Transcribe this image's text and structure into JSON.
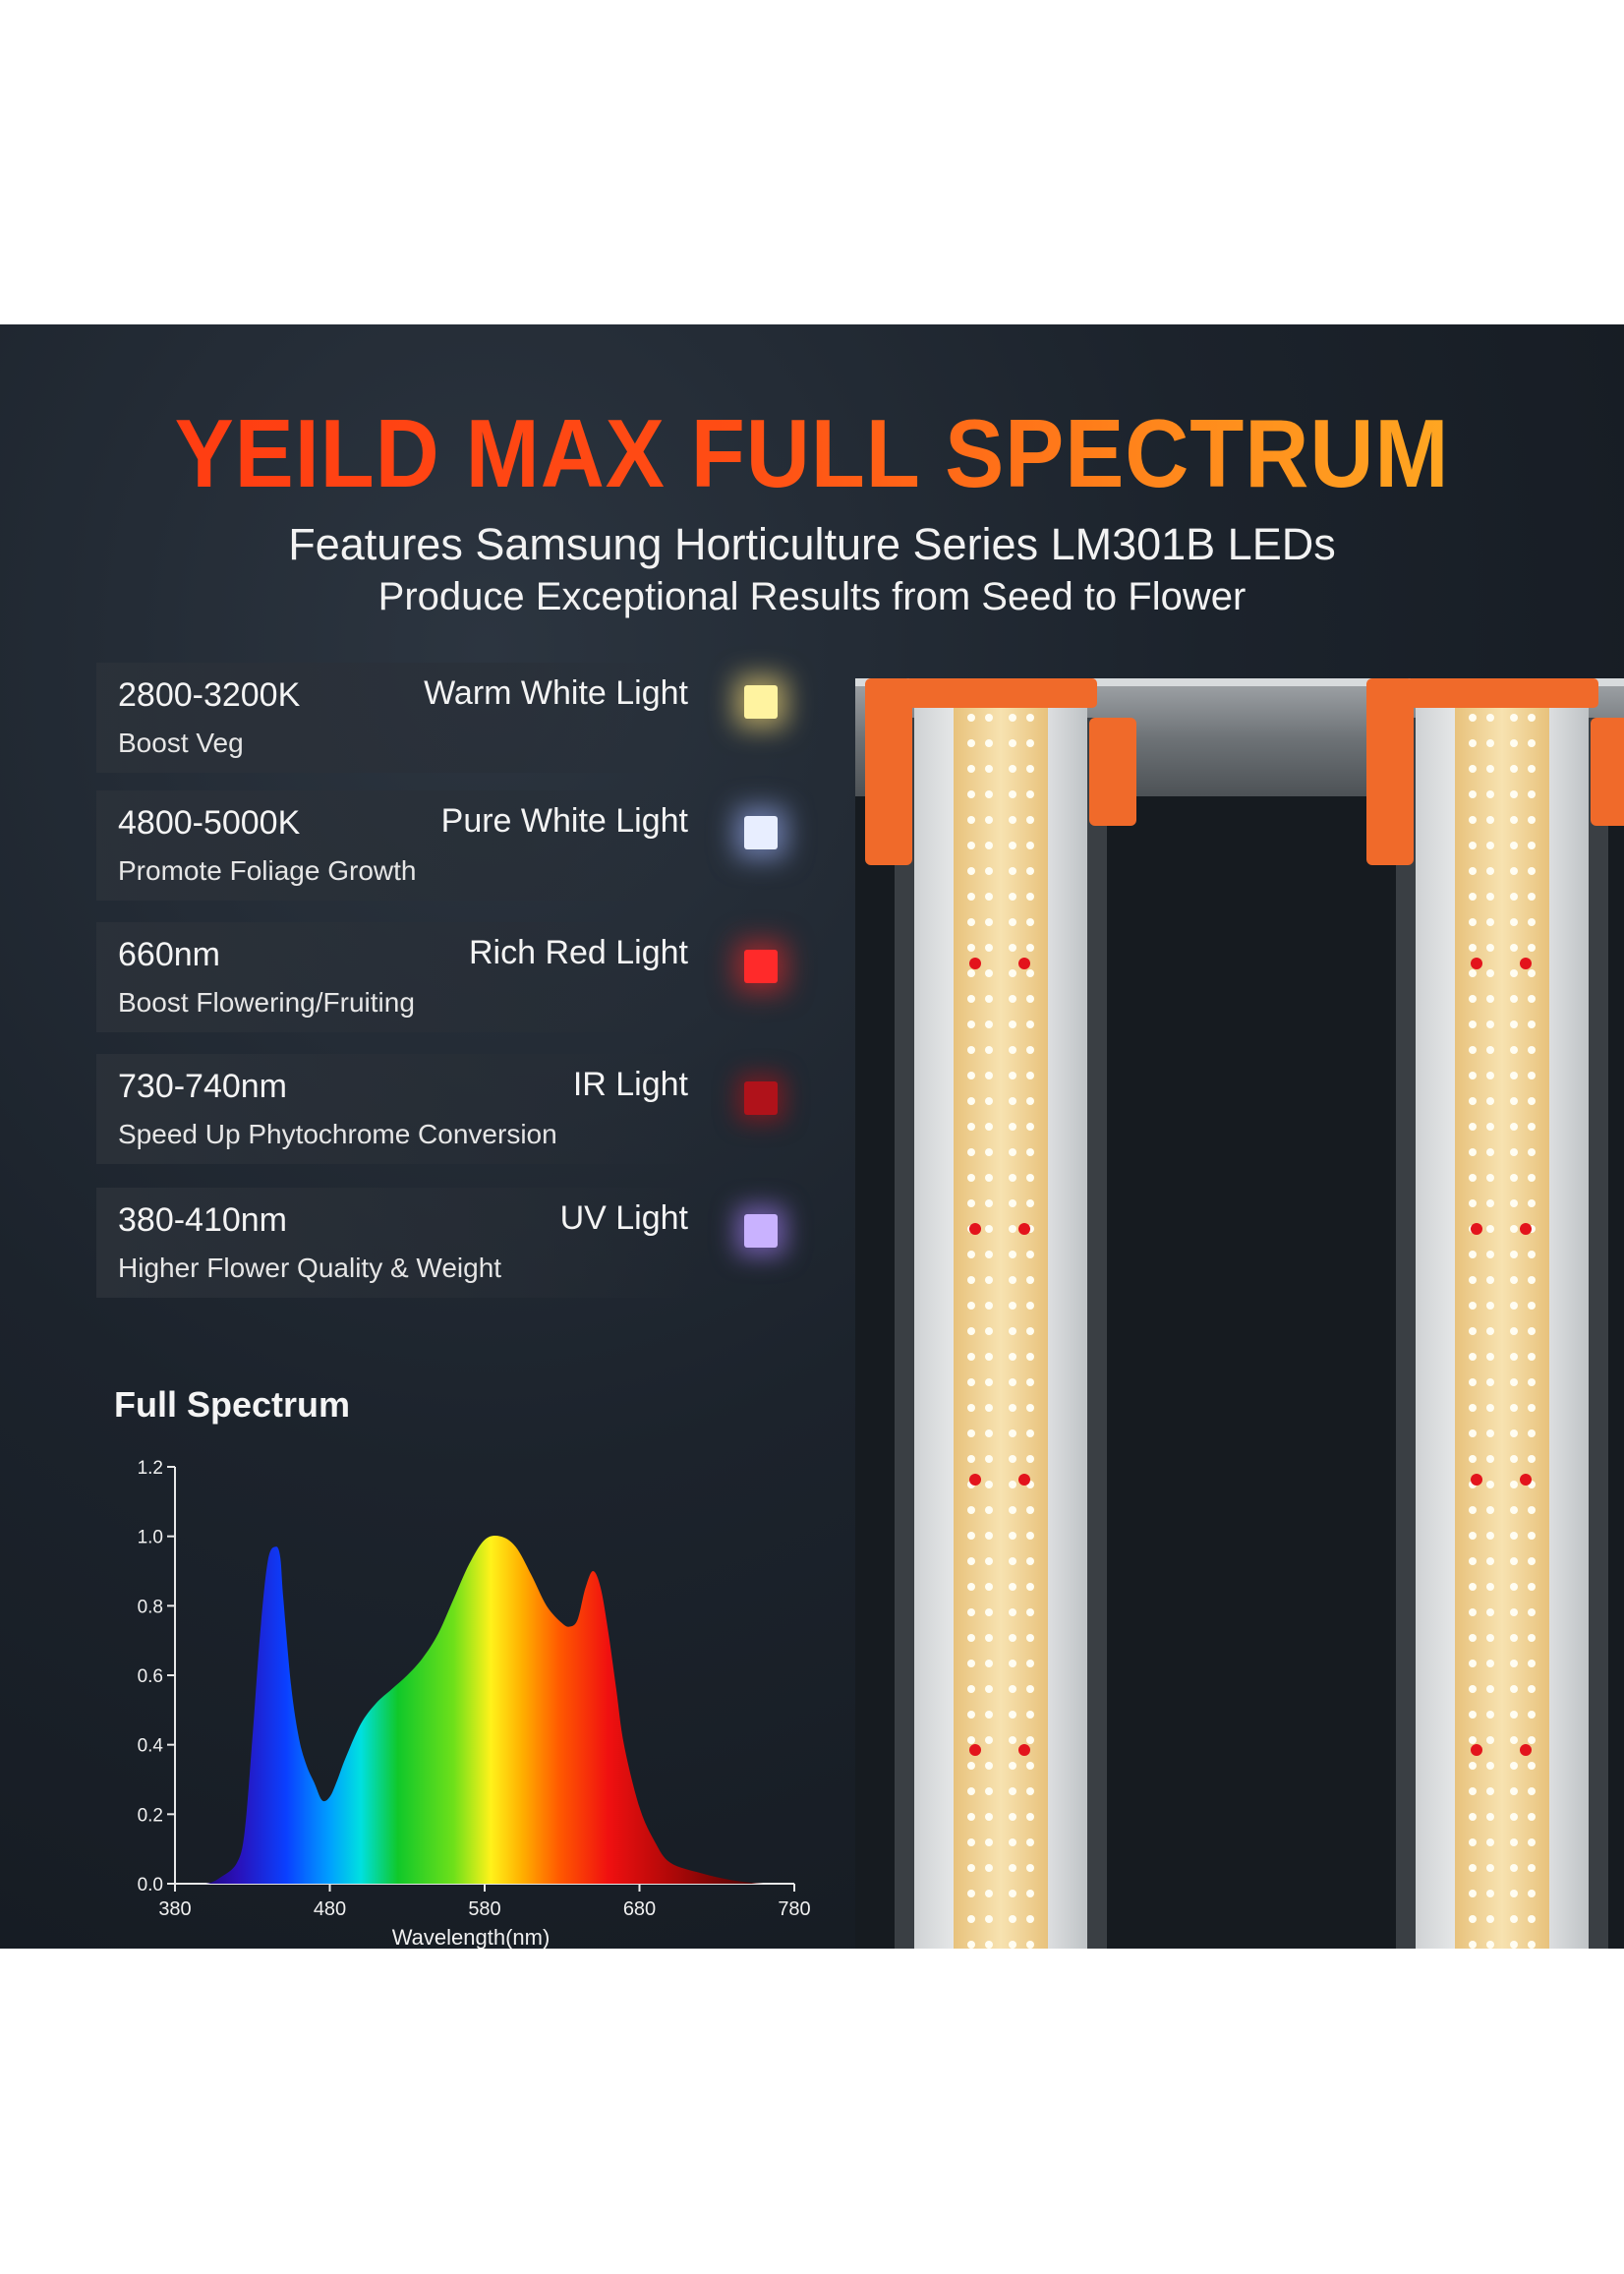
{
  "title": "YEILD MAX FULL SPECTRUM",
  "subtitle_line1": "Features Samsung Horticulture Series LM301B LEDs",
  "subtitle_line2": "Produce Exceptional Results from Seed to Flower",
  "features": [
    {
      "range": "2800-3200K",
      "name": "Warm White Light",
      "desc": "Boost Veg",
      "color": "#fff3a0"
    },
    {
      "range": "4800-5000K",
      "name": "Pure White Light",
      "desc": "Promote Foliage Growth",
      "color": "#e8eeff"
    },
    {
      "range": "660nm",
      "name": "Rich Red Light",
      "desc": "Boost Flowering/Fruiting",
      "color": "#ff2a2a"
    },
    {
      "range": "730-740nm",
      "name": "IR Light",
      "desc": "Speed Up Phytochrome Conversion",
      "color": "#b0121a"
    },
    {
      "range": "380-410nm",
      "name": "UV Light",
      "desc": "Higher Flower Quality & Weight",
      "color": "#c9b2ff"
    }
  ],
  "chart_title": "Full Spectrum",
  "chart_data": {
    "type": "area",
    "xlabel": "Wavelength(nm)",
    "ylabel": "",
    "xlim": [
      380,
      780
    ],
    "ylim": [
      0,
      1.2
    ],
    "x_ticks": [
      "380",
      "480",
      "580",
      "680",
      "780"
    ],
    "y_ticks": [
      "0.0",
      "0.2",
      "0.4",
      "0.6",
      "0.8",
      "1.0",
      "1.2"
    ],
    "x": [
      380,
      400,
      410,
      420,
      425,
      430,
      435,
      440,
      445,
      448,
      450,
      455,
      460,
      465,
      470,
      475,
      480,
      485,
      490,
      500,
      510,
      520,
      530,
      540,
      550,
      560,
      570,
      580,
      590,
      600,
      610,
      620,
      630,
      635,
      640,
      645,
      650,
      655,
      660,
      665,
      670,
      680,
      690,
      700,
      720,
      740,
      760,
      780
    ],
    "values": [
      0,
      0,
      0.02,
      0.06,
      0.15,
      0.42,
      0.72,
      0.93,
      0.97,
      0.94,
      0.82,
      0.57,
      0.42,
      0.34,
      0.29,
      0.24,
      0.25,
      0.3,
      0.36,
      0.46,
      0.52,
      0.56,
      0.6,
      0.65,
      0.72,
      0.82,
      0.92,
      0.99,
      1.0,
      0.97,
      0.89,
      0.8,
      0.75,
      0.74,
      0.76,
      0.85,
      0.9,
      0.85,
      0.72,
      0.56,
      0.4,
      0.22,
      0.12,
      0.06,
      0.03,
      0.01,
      0,
      0
    ]
  },
  "colors": {
    "title_start": "#ff3a12",
    "title_end": "#ffb224",
    "background": "#1a2028",
    "fixture_orange": "#f06a2a",
    "led_strip": "#f3d9a0"
  }
}
